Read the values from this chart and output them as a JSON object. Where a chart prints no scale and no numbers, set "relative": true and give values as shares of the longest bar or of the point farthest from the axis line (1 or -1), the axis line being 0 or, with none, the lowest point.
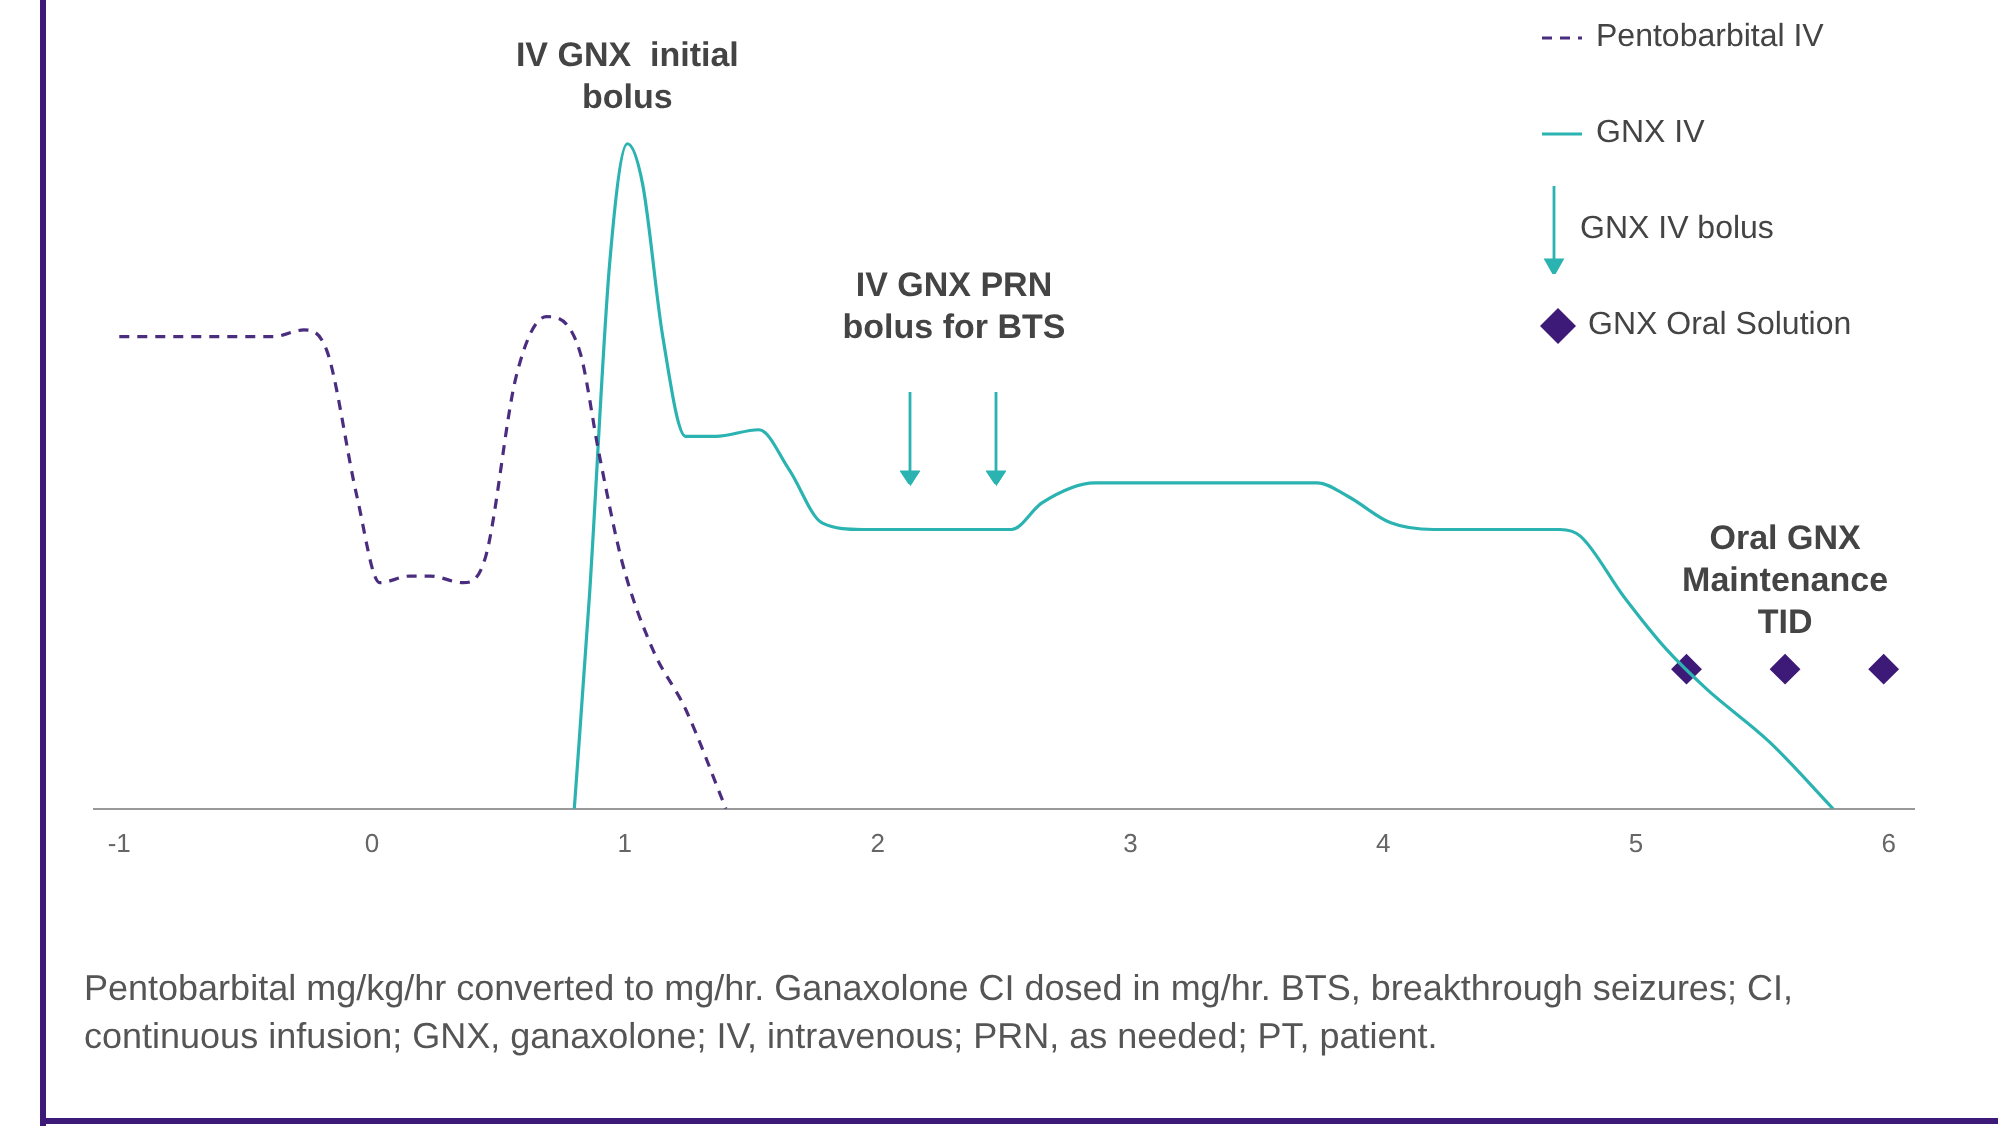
{
  "chart_data": {
    "type": "line",
    "relative": true,
    "legend": "top right",
    "grid": false,
    "xlim": [
      -1.1,
      6.1
    ],
    "xticks": [
      -1,
      0,
      1,
      2,
      3,
      4,
      5,
      6
    ],
    "series": [
      {
        "name": "Pentobarbital IV",
        "line_style": "dashed",
        "marker": "none",
        "color": "#4b2d7f",
        "x": [
          -1.0,
          -0.39,
          -0.27,
          -0.18,
          -0.06,
          0.03,
          0.15,
          0.23,
          0.36,
          0.45,
          0.57,
          0.69,
          0.82,
          0.9,
          0.99,
          1.11,
          1.24,
          1.4
        ],
        "values": [
          0.71,
          0.71,
          0.72,
          0.69,
          0.47,
          0.34,
          0.35,
          0.35,
          0.34,
          0.38,
          0.65,
          0.74,
          0.69,
          0.53,
          0.37,
          0.24,
          0.15,
          0
        ]
      },
      {
        "name": "GNX IV",
        "line_style": "solid",
        "marker": "none",
        "color": "#2ab3b1",
        "x": [
          0.8,
          0.86,
          0.94,
          1.01,
          1.07,
          1.15,
          1.24,
          1.36,
          1.53,
          1.65,
          1.78,
          1.94,
          2.53,
          2.65,
          2.86,
          3.74,
          3.86,
          4.03,
          4.2,
          4.7,
          4.78,
          4.95,
          5.12,
          5.28,
          5.53,
          5.78
        ],
        "values": [
          0,
          0.32,
          0.82,
          1,
          0.94,
          0.71,
          0.56,
          0.56,
          0.57,
          0.51,
          0.43,
          0.42,
          0.42,
          0.46,
          0.49,
          0.49,
          0.47,
          0.43,
          0.42,
          0.42,
          0.41,
          0.32,
          0.24,
          0.18,
          0.1,
          0
        ]
      },
      {
        "name": "GNX IV bolus",
        "type": "scatter",
        "marker": "triangle",
        "color": "#2ab3b1",
        "x": [
          2.13,
          2.47
        ],
        "values": [
          0.5,
          0.5
        ]
      },
      {
        "name": "GNX Oral Solution",
        "type": "scatter",
        "marker": "diamond",
        "color": "#3d1a78",
        "x": [
          5.2,
          5.59,
          5.98
        ],
        "values": [
          0.21,
          0.21,
          0.21
        ]
      }
    ],
    "annotations": [
      {
        "text": "IV GNX  initial bolus",
        "x": 1.01,
        "y": 1
      },
      "IV GNX PRN bolus for BTS",
      {
        "text": "Oral GNX Maintenance TID",
        "x": 5.59,
        "y": 0.21
      },
      "Pentobarbital  mg/kg/hr converted to mg/hr. Ganaxolone CI dosed in mg/hr. BTS, breakthrough seizures; CI, continuous infusion; GNX, ganaxolone; IV, intravenous; PRN, as needed; PT, patient."
    ]
  }
}
